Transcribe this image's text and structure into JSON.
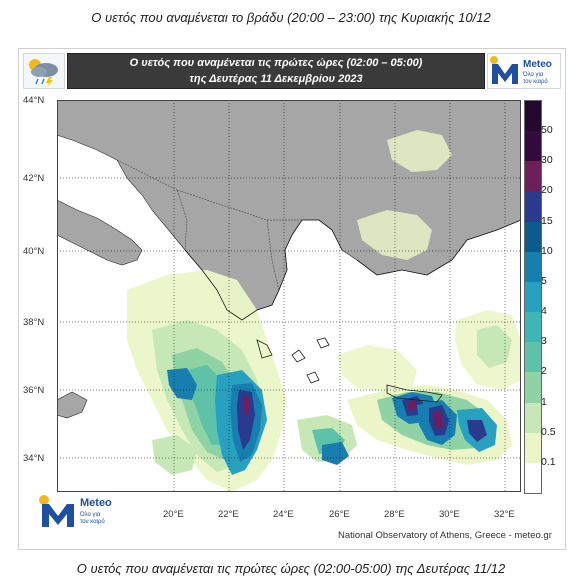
{
  "caption_top": "Ο υετός που αναμένεται το βράδυ (20:00 – 23:00) της Κυριακής 10/12",
  "caption_bottom": "Ο υετός που αναμένεται τις πρώτες ώρες (02:00-05:00) της Δευτέρας 11/12",
  "banner": {
    "line1": "Ο υετός που αναμένεται τις πρώτες ώρες (02:00 – 05:00)",
    "line2": "της Δευτέρας 11 Δεκεμβρίου 2023",
    "weather_icon": "rain-cloud-icon"
  },
  "logo": {
    "word": "Meteo",
    "tagline_1": "Όλο για",
    "tagline_2": "τον καιρό"
  },
  "map": {
    "lat_labels": [
      "44°N",
      "42°N",
      "40°N",
      "38°N",
      "36°N",
      "34°N"
    ],
    "lon_labels": [
      "20°E",
      "22°E",
      "24°E",
      "26°E",
      "28°E",
      "30°E",
      "32°E"
    ],
    "land_color": "#a6a6a6",
    "sea_color": "#ffffff"
  },
  "legend": {
    "labels": [
      "50",
      "30",
      "20",
      "15",
      "10",
      "5",
      "4",
      "3",
      "2",
      "1",
      "0.5",
      "0.1"
    ],
    "colors": [
      "#320a3c",
      "#6e1e5a",
      "#2a3a8f",
      "#0b5b8d",
      "#177fb0",
      "#28a0c0",
      "#3fb5b5",
      "#5ec2a8",
      "#8fd3a5",
      "#c6e8b6",
      "#ebf5c8",
      "#ffffff"
    ]
  },
  "credit": "National Observatory of Athens, Greece - meteo.gr"
}
